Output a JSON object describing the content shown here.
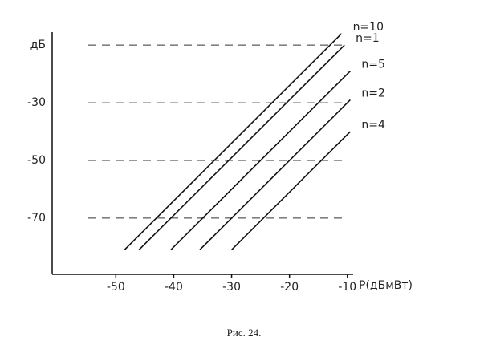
{
  "chart_data": {
    "type": "line",
    "x_label": "P(дБмВт)",
    "caption": "Рис. 24.",
    "xlim": [
      -61,
      -9
    ],
    "ylim": [
      -89.5,
      -5.5
    ],
    "xticks": [
      -50,
      -40,
      -30,
      -20,
      -10
    ],
    "yticks": [
      {
        "value": -10,
        "label": "дБ"
      },
      -30,
      -50,
      -70
    ],
    "grid": true,
    "series": [
      {
        "name": "n=10",
        "color": "#111111",
        "x": [
          -48.5,
          -11
        ],
        "values": [
          -81,
          -6
        ]
      },
      {
        "name": "n=1",
        "color": "#111111",
        "x": [
          -46,
          -10.5
        ],
        "values": [
          -81,
          -10
        ]
      },
      {
        "name": "n=5",
        "color": "#111111",
        "x": [
          -40.5,
          -9.5
        ],
        "values": [
          -81,
          -19
        ]
      },
      {
        "name": "n=2",
        "color": "#111111",
        "x": [
          -35.5,
          -9.5
        ],
        "values": [
          -81,
          -29
        ]
      },
      {
        "name": "n=4",
        "color": "#111111",
        "x": [
          -30,
          -9.5
        ],
        "values": [
          -81,
          -40
        ]
      }
    ]
  }
}
